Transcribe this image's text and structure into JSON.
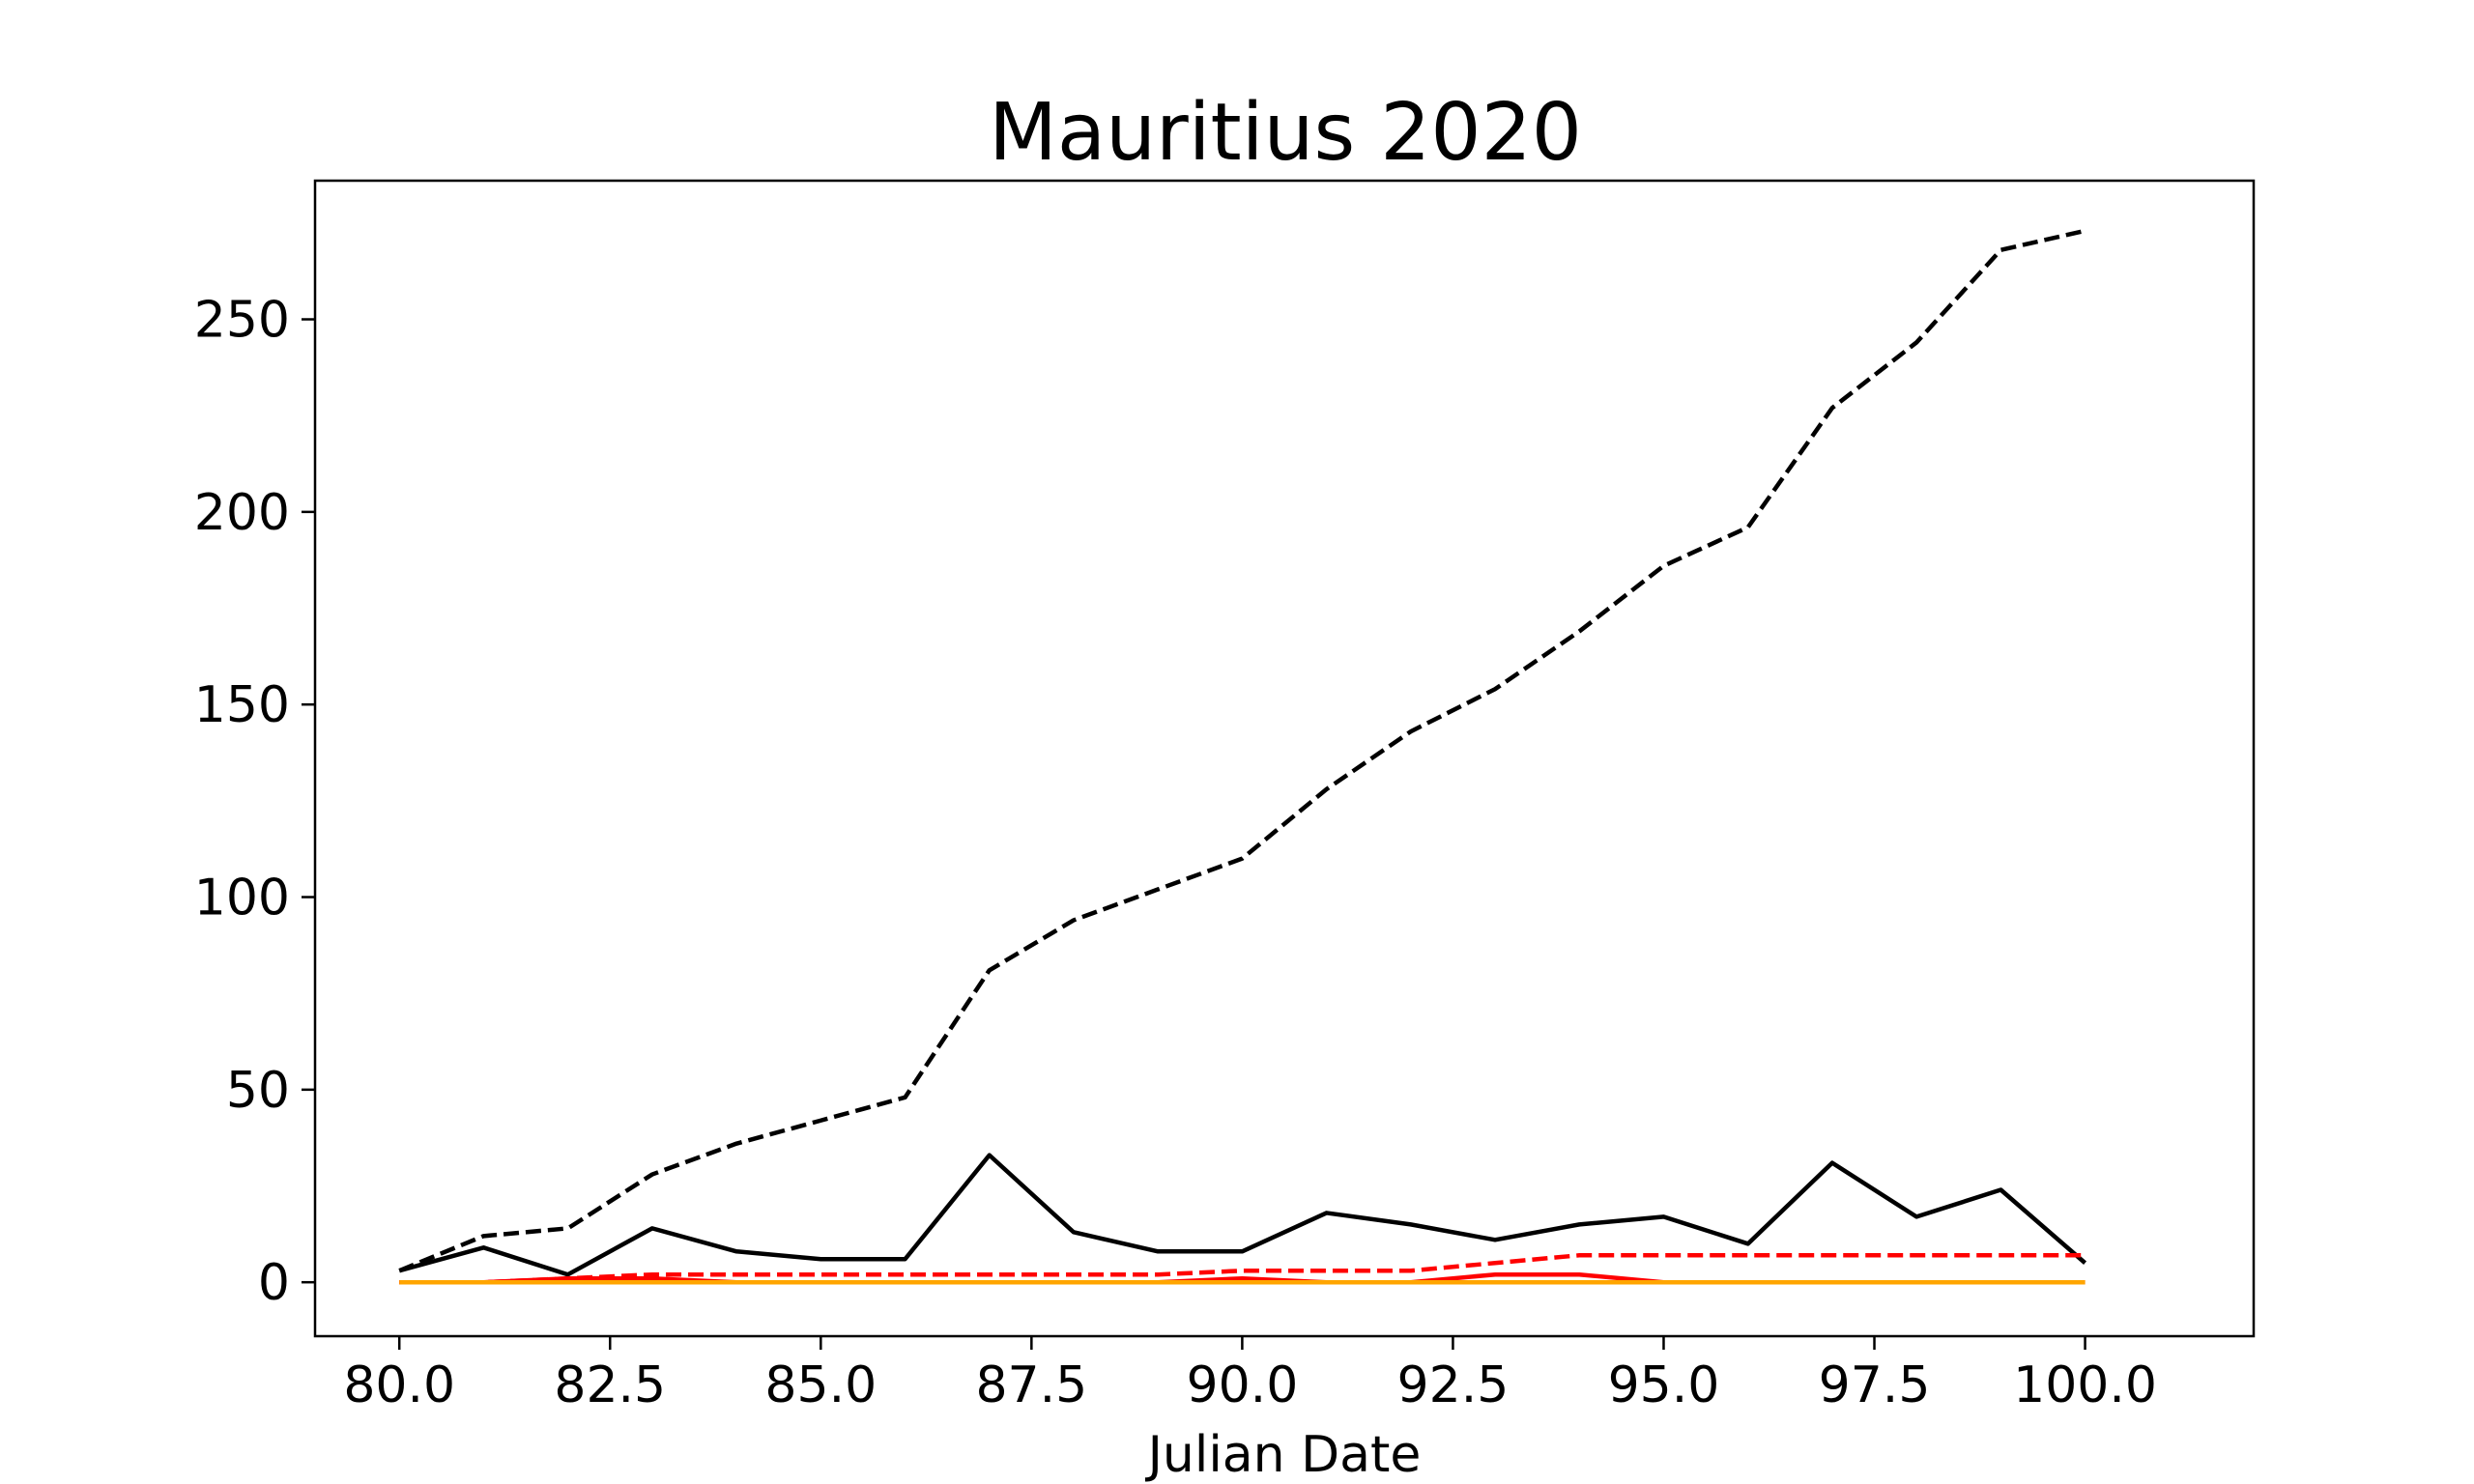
{
  "chart_data": {
    "type": "line",
    "title": "Mauritius 2020",
    "xlabel": "Julian Date",
    "ylabel": "",
    "xlim": [
      79,
      102
    ],
    "ylim": [
      -14,
      286
    ],
    "x_ticks": [
      80.0,
      82.5,
      85.0,
      87.5,
      90.0,
      92.5,
      95.0,
      97.5,
      100.0
    ],
    "x_tick_labels": [
      "80.0",
      "82.5",
      "85.0",
      "87.5",
      "90.0",
      "92.5",
      "95.0",
      "97.5",
      "100.0"
    ],
    "y_ticks": [
      0,
      50,
      100,
      150,
      200,
      250
    ],
    "y_tick_labels": [
      "0",
      "50",
      "100",
      "150",
      "200",
      "250"
    ],
    "grid": false,
    "x": [
      80,
      81,
      82,
      83,
      84,
      85,
      86,
      87,
      88,
      89,
      90,
      91,
      92,
      93,
      94,
      95,
      96,
      97,
      98,
      99,
      100
    ],
    "series": [
      {
        "color": "#000000",
        "dash": "dashed",
        "values": [
          3,
          12,
          14,
          28,
          36,
          42,
          48,
          81,
          94,
          102,
          110,
          128,
          143,
          154,
          169,
          186,
          196,
          227,
          244,
          268,
          273
        ]
      },
      {
        "color": "#000000",
        "dash": "solid",
        "values": [
          3,
          9,
          2,
          14,
          8,
          6,
          6,
          33,
          13,
          8,
          8,
          18,
          15,
          11,
          15,
          17,
          10,
          31,
          17,
          24,
          5
        ]
      },
      {
        "color": "#ff0000",
        "dash": "dashed",
        "values": [
          0,
          0,
          1,
          2,
          2,
          2,
          2,
          2,
          2,
          2,
          3,
          3,
          3,
          5,
          7,
          7,
          7,
          7,
          7,
          7,
          7
        ]
      },
      {
        "color": "#ff0000",
        "dash": "solid",
        "values": [
          0,
          0,
          1,
          1,
          0,
          0,
          0,
          0,
          0,
          0,
          1,
          0,
          0,
          2,
          2,
          0,
          0,
          0,
          0,
          0,
          0
        ]
      },
      {
        "color": "#ffa500",
        "dash": "solid",
        "values": [
          0,
          0,
          0,
          0,
          0,
          0,
          0,
          0,
          0,
          0,
          0,
          0,
          0,
          0,
          0,
          0,
          0,
          0,
          0,
          0,
          0
        ]
      }
    ]
  }
}
